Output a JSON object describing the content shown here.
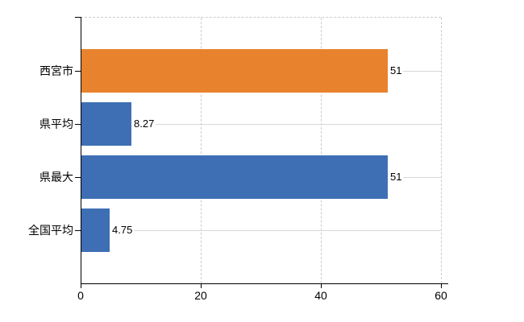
{
  "chart_data": {
    "type": "bar",
    "orientation": "horizontal",
    "title": "",
    "xlabel": "",
    "ylabel": "",
    "categories": [
      "西宮市",
      "県平均",
      "県最大",
      "全国平均"
    ],
    "values": [
      51,
      8.27,
      51,
      4.75
    ],
    "value_labels": [
      "51",
      "8.27",
      "51",
      "4.75"
    ],
    "bar_colors": [
      "#E9822D",
      "#3E6FB4",
      "#3E6FB4",
      "#3E6FB4"
    ],
    "xlim": [
      0,
      60
    ],
    "xticks": [
      0,
      20,
      40,
      60
    ],
    "xtick_labels": [
      "0",
      "20",
      "40",
      "60"
    ],
    "grid": true,
    "legend": false
  },
  "colors": {
    "background": "#FFFFFF",
    "axis": "#000000",
    "gridline_solid": "#D8D8D8",
    "gridline_dashed": "#CCCCCC",
    "text": "#000000",
    "highlight_bar": "#E9822D",
    "default_bar": "#3E6FB4"
  }
}
